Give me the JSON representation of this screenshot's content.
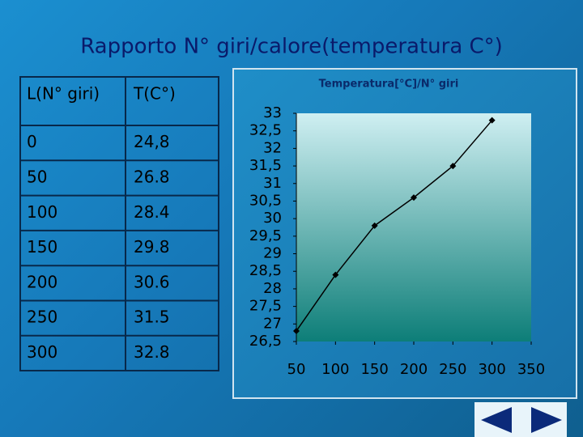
{
  "header": {
    "title": "Rapporto N° giri/calore(temperatura C°)"
  },
  "table": {
    "header": [
      "L(N° giri)",
      "T(C°)"
    ],
    "rows": [
      [
        "0",
        "24,8"
      ],
      [
        "50",
        "26.8"
      ],
      [
        "100",
        "28.4"
      ],
      [
        "150",
        "29.8"
      ],
      [
        "200",
        "30.6"
      ],
      [
        "250",
        "31.5"
      ],
      [
        "300",
        "32.8"
      ]
    ]
  },
  "chart_data": {
    "type": "line",
    "title": "Temperatura[°C]/N° giri",
    "x": [
      50,
      100,
      150,
      200,
      250,
      300
    ],
    "series": [
      {
        "name": "T",
        "color": "#000000",
        "values": [
          26.8,
          28.4,
          29.8,
          30.6,
          31.5,
          32.8
        ]
      }
    ],
    "xlim": [
      50,
      350
    ],
    "xticks": [
      50,
      100,
      150,
      200,
      250,
      300,
      350
    ],
    "ylim": [
      26.5,
      33
    ],
    "yticks": [
      {
        "value": 26.5,
        "label": "26,5"
      },
      27,
      {
        "value": 27.5,
        "label": "27,5"
      },
      28,
      {
        "value": 28.5,
        "label": "28,5"
      },
      29,
      {
        "value": 29.5,
        "label": "29,5"
      },
      30,
      {
        "value": 30.5,
        "label": "30,5"
      },
      31,
      {
        "value": 31.5,
        "label": "31,5"
      },
      32,
      {
        "value": 32.5,
        "label": "32,5"
      },
      33
    ],
    "grid": false
  }
}
